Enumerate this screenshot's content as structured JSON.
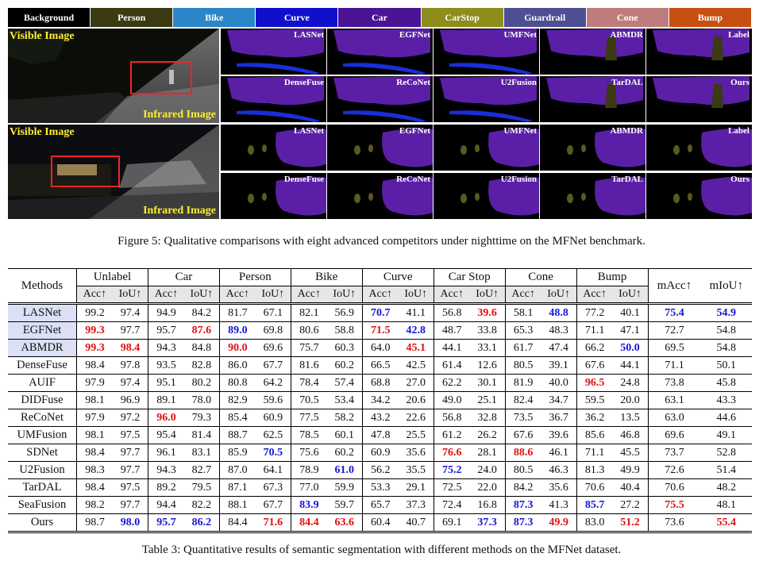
{
  "legend": [
    {
      "label": "Background",
      "color": "#000000"
    },
    {
      "label": "Person",
      "color": "#3c3a13"
    },
    {
      "label": "Bike",
      "color": "#2b86c9"
    },
    {
      "label": "Curve",
      "color": "#1010cc"
    },
    {
      "label": "Car",
      "color": "#4a1495"
    },
    {
      "label": "CarStop",
      "color": "#8d8d1b"
    },
    {
      "label": "Guardrail",
      "color": "#4e4e94"
    },
    {
      "label": "Cone",
      "color": "#c07c7c"
    },
    {
      "label": "Bump",
      "color": "#c84f12"
    }
  ],
  "figure": {
    "visible_label": "Visible Image",
    "infrared_label": "Infrared Image",
    "tiles_top_row1": [
      "LASNet",
      "EGFNet",
      "UMFNet",
      "ABMDR",
      "Label"
    ],
    "tiles_top_row2": [
      "DenseFuse",
      "ReCoNet",
      "U2Fusion",
      "TarDAL",
      "Ours"
    ],
    "tiles_bottom_row1": [
      "LASNet",
      "EGFNet",
      "UMFNet",
      "ABMDR",
      "Label"
    ],
    "tiles_bottom_row2": [
      "DenseFuse",
      "ReCoNet",
      "U2Fusion",
      "TarDAL",
      "Ours"
    ],
    "caption": "Figure 5: Qualitative comparisons with eight advanced competitors under nighttime on the MFNet benchmark."
  },
  "table": {
    "methods_header": "Methods",
    "groups": [
      "Unlabel",
      "Car",
      "Person",
      "Bike",
      "Curve",
      "Car Stop",
      "Cone",
      "Bump"
    ],
    "sub": [
      "Acc↑",
      "IoU↑"
    ],
    "macc": "mAcc↑",
    "miou": "mIoU↑",
    "rows": [
      {
        "m": "LASNet",
        "hl": true,
        "v": [
          "99.2",
          "97.4",
          "94.9",
          "84.2",
          "81.7",
          "67.1",
          "82.1",
          "56.9",
          "70.7",
          "41.1",
          "56.8",
          "39.6",
          "58.1",
          "48.8",
          "77.2",
          "40.1",
          "75.4",
          "54.9"
        ],
        "c": [
          "",
          "",
          "",
          "",
          "",
          "",
          "",
          "",
          "b",
          "",
          "",
          "r",
          "",
          "b",
          "",
          "",
          "b",
          "b"
        ]
      },
      {
        "m": "EGFNet",
        "hl": true,
        "v": [
          "99.3",
          "97.7",
          "95.7",
          "87.6",
          "89.0",
          "69.8",
          "80.6",
          "58.8",
          "71.5",
          "42.8",
          "48.7",
          "33.8",
          "65.3",
          "48.3",
          "71.1",
          "47.1",
          "72.7",
          "54.8"
        ],
        "c": [
          "r",
          "",
          "",
          "r",
          "b",
          "",
          "",
          "",
          "r",
          "b",
          "",
          "",
          "",
          "",
          "",
          "",
          "",
          ""
        ]
      },
      {
        "m": "ABMDR",
        "hl": true,
        "v": [
          "99.3",
          "98.4",
          "94.3",
          "84.8",
          "90.0",
          "69.6",
          "75.7",
          "60.3",
          "64.0",
          "45.1",
          "44.1",
          "33.1",
          "61.7",
          "47.4",
          "66.2",
          "50.0",
          "69.5",
          "54.8"
        ],
        "c": [
          "r",
          "r",
          "",
          "",
          "r",
          "",
          "",
          "",
          "",
          "r",
          "",
          "",
          "",
          "",
          "",
          "b",
          "",
          ""
        ]
      },
      {
        "m": "DenseFuse",
        "hl": false,
        "v": [
          "98.4",
          "97.8",
          "93.5",
          "82.8",
          "86.0",
          "67.7",
          "81.6",
          "60.2",
          "66.5",
          "42.5",
          "61.4",
          "12.6",
          "80.5",
          "39.1",
          "67.6",
          "44.1",
          "71.1",
          "50.1"
        ],
        "c": [
          "",
          "",
          "",
          "",
          "",
          "",
          "",
          "",
          "",
          "",
          "",
          "",
          "",
          "",
          "",
          "",
          "",
          ""
        ]
      },
      {
        "m": "AUIF",
        "hl": false,
        "v": [
          "97.9",
          "97.4",
          "95.1",
          "80.2",
          "80.8",
          "64.2",
          "78.4",
          "57.4",
          "68.8",
          "27.0",
          "62.2",
          "30.1",
          "81.9",
          "40.0",
          "96.5",
          "24.8",
          "73.8",
          "45.8"
        ],
        "c": [
          "",
          "",
          "",
          "",
          "",
          "",
          "",
          "",
          "",
          "",
          "",
          "",
          "",
          "",
          "r",
          "",
          "",
          ""
        ]
      },
      {
        "m": "DIDFuse",
        "hl": false,
        "v": [
          "98.1",
          "96.9",
          "89.1",
          "78.0",
          "82.9",
          "59.6",
          "70.5",
          "53.4",
          "34.2",
          "20.6",
          "49.0",
          "25.1",
          "82.4",
          "34.7",
          "59.5",
          "20.0",
          "63.1",
          "43.3"
        ],
        "c": [
          "",
          "",
          "",
          "",
          "",
          "",
          "",
          "",
          "",
          "",
          "",
          "",
          "",
          "",
          "",
          "",
          "",
          ""
        ]
      },
      {
        "m": "ReCoNet",
        "hl": false,
        "v": [
          "97.9",
          "97.2",
          "96.0",
          "79.3",
          "85.4",
          "60.9",
          "77.5",
          "58.2",
          "43.2",
          "22.6",
          "56.8",
          "32.8",
          "73.5",
          "36.7",
          "36.2",
          "13.5",
          "63.0",
          "44.6"
        ],
        "c": [
          "",
          "",
          "r",
          "",
          "",
          "",
          "",
          "",
          "",
          "",
          "",
          "",
          "",
          "",
          "",
          "",
          "",
          ""
        ]
      },
      {
        "m": "UMFusion",
        "hl": false,
        "v": [
          "98.1",
          "97.5",
          "95.4",
          "81.4",
          "88.7",
          "62.5",
          "78.5",
          "60.1",
          "47.8",
          "25.5",
          "61.2",
          "26.2",
          "67.6",
          "39.6",
          "85.6",
          "46.8",
          "69.6",
          "49.1"
        ],
        "c": [
          "",
          "",
          "",
          "",
          "",
          "",
          "",
          "",
          "",
          "",
          "",
          "",
          "",
          "",
          "",
          "",
          "",
          ""
        ]
      },
      {
        "m": "SDNet",
        "hl": false,
        "v": [
          "98.4",
          "97.7",
          "96.1",
          "83.1",
          "85.9",
          "70.5",
          "75.6",
          "60.2",
          "60.9",
          "35.6",
          "76.6",
          "28.1",
          "88.6",
          "46.1",
          "71.1",
          "45.5",
          "73.7",
          "52.8"
        ],
        "c": [
          "",
          "",
          "",
          "",
          "",
          "b",
          "",
          "",
          "",
          "",
          "r",
          "",
          "r",
          "",
          "",
          "",
          "",
          ""
        ]
      },
      {
        "m": "U2Fusion",
        "hl": false,
        "v": [
          "98.3",
          "97.7",
          "94.3",
          "82.7",
          "87.0",
          "64.1",
          "78.9",
          "61.0",
          "56.2",
          "35.5",
          "75.2",
          "24.0",
          "80.5",
          "46.3",
          "81.3",
          "49.9",
          "72.6",
          "51.4"
        ],
        "c": [
          "",
          "",
          "",
          "",
          "",
          "",
          "",
          "b",
          "",
          "",
          "b",
          "",
          "",
          "",
          "",
          "",
          "",
          ""
        ]
      },
      {
        "m": "TarDAL",
        "hl": false,
        "v": [
          "98.4",
          "97.5",
          "89.2",
          "79.5",
          "87.1",
          "67.3",
          "77.0",
          "59.9",
          "53.3",
          "29.1",
          "72.5",
          "22.0",
          "84.2",
          "35.6",
          "70.6",
          "40.4",
          "70.6",
          "48.2"
        ],
        "c": [
          "",
          "",
          "",
          "",
          "",
          "",
          "",
          "",
          "",
          "",
          "",
          "",
          "",
          "",
          "",
          "",
          "",
          ""
        ]
      },
      {
        "m": "SeaFusion",
        "hl": false,
        "v": [
          "98.2",
          "97.7",
          "94.4",
          "82.2",
          "88.1",
          "67.7",
          "83.9",
          "59.7",
          "65.7",
          "37.3",
          "72.4",
          "16.8",
          "87.3",
          "41.3",
          "85.7",
          "27.2",
          "75.5",
          "48.1"
        ],
        "c": [
          "",
          "",
          "",
          "",
          "",
          "",
          "b",
          "",
          "",
          "",
          "",
          "",
          "b",
          "",
          "b",
          "",
          "r",
          ""
        ]
      },
      {
        "m": "Ours",
        "hl": false,
        "v": [
          "98.7",
          "98.0",
          "95.7",
          "86.2",
          "84.4",
          "71.6",
          "84.4",
          "63.6",
          "60.4",
          "40.7",
          "69.1",
          "37.3",
          "87.3",
          "49.9",
          "83.0",
          "51.2",
          "73.6",
          "55.4"
        ],
        "c": [
          "",
          "b",
          "b",
          "b",
          "",
          "r",
          "r",
          "r",
          "",
          "",
          "",
          "b",
          "b",
          "r",
          "",
          "r",
          "",
          "r"
        ]
      }
    ],
    "caption": "Table 3: Quantitative results of semantic segmentation with different methods on the MFNet dataset."
  }
}
